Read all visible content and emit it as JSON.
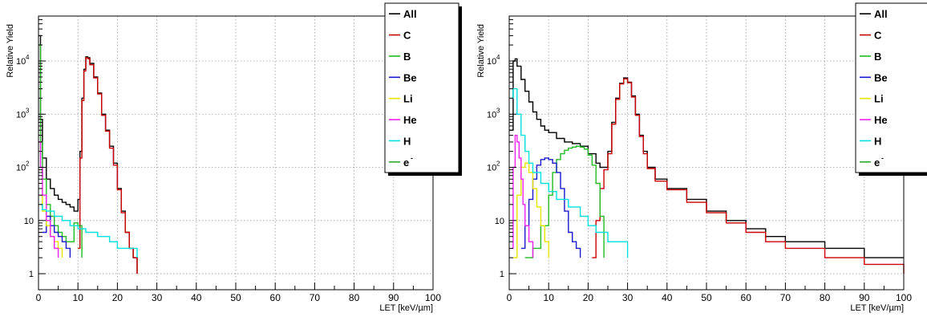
{
  "chart_data": [
    {
      "type": "line",
      "title": "",
      "xlabel": "LET [keV/µm]",
      "ylabel": "Relative Yield",
      "xlim": [
        0,
        100
      ],
      "ylim": [
        0.5,
        70000
      ],
      "yscale": "log",
      "grid": true,
      "legend_position": "top-right",
      "x_ticks": [
        "0",
        "10",
        "20",
        "30",
        "40",
        "50",
        "60",
        "70",
        "80",
        "90",
        "100"
      ],
      "y_ticks": [
        {
          "value": 1,
          "base": "1",
          "exp": ""
        },
        {
          "value": 10,
          "base": "10",
          "exp": ""
        },
        {
          "value": 100,
          "base": "10",
          "exp": "2"
        },
        {
          "value": 1000,
          "base": "10",
          "exp": "3"
        },
        {
          "value": 10000,
          "base": "10",
          "exp": "4"
        }
      ],
      "series": [
        {
          "name": "All",
          "color": "#000000",
          "x": [
            0,
            0.5,
            1,
            2,
            3,
            4,
            5,
            6,
            7,
            8,
            9,
            10,
            10.5,
            11,
            11.5,
            12,
            12.5,
            13,
            14,
            15,
            16,
            17,
            18,
            19,
            20,
            21,
            22,
            23,
            24,
            25
          ],
          "y": [
            30000,
            800,
            150,
            60,
            40,
            30,
            25,
            22,
            20,
            18,
            15,
            25,
            200,
            2000,
            7000,
            12000,
            11500,
            9000,
            5000,
            2500,
            1000,
            500,
            250,
            120,
            40,
            15,
            6,
            3,
            2,
            1
          ]
        },
        {
          "name": "C",
          "color": "#cc0000",
          "x": [
            10,
            10.5,
            11,
            11.5,
            12,
            12.5,
            13,
            14,
            15,
            16,
            17,
            18,
            19,
            20,
            21,
            22,
            23,
            24,
            25
          ],
          "y": [
            3,
            150,
            1800,
            6500,
            11500,
            11000,
            8500,
            4800,
            2400,
            950,
            480,
            230,
            110,
            38,
            14,
            6,
            3,
            2,
            1
          ]
        },
        {
          "name": "B",
          "color": "#22bb22",
          "x": [
            0,
            0.5,
            1,
            2,
            3,
            4,
            5,
            6,
            7,
            8,
            9,
            10,
            11
          ],
          "y": [
            20000,
            300,
            60,
            20,
            12,
            8,
            6,
            5,
            4,
            4,
            9,
            8,
            2
          ]
        },
        {
          "name": "Be",
          "color": "#1a1acc",
          "x": [
            1,
            2,
            3,
            4,
            5,
            6,
            7,
            8
          ],
          "y": [
            6,
            12,
            8,
            6,
            5,
            4,
            3,
            2
          ]
        },
        {
          "name": "Li",
          "color": "#e6e600",
          "x": [
            0.5,
            1,
            2,
            3,
            4,
            5,
            6
          ],
          "y": [
            30,
            15,
            8,
            5,
            4,
            3,
            2
          ]
        },
        {
          "name": "He",
          "color": "#ee22ee",
          "x": [
            0,
            0.5,
            1,
            2,
            3,
            4,
            5
          ],
          "y": [
            300,
            100,
            30,
            10,
            5,
            3,
            2
          ]
        },
        {
          "name": "H",
          "color": "#00e0e0",
          "x": [
            0.5,
            1,
            2,
            4,
            6,
            8,
            10,
            12,
            15,
            18,
            20,
            25
          ],
          "y": [
            20,
            16,
            15,
            12,
            10,
            8,
            7,
            6,
            5,
            4,
            3,
            2
          ]
        },
        {
          "name": "e-",
          "label_base": "e",
          "label_sup": "-",
          "color": "#33aa33",
          "x": [],
          "y": []
        }
      ]
    },
    {
      "type": "line",
      "title": "",
      "xlabel": "LET [keV/µm]",
      "ylabel": "Relative Yield",
      "xlim": [
        0,
        100
      ],
      "ylim": [
        0.5,
        70000
      ],
      "yscale": "log",
      "grid": true,
      "legend_position": "top-right",
      "x_ticks": [
        "0",
        "10",
        "20",
        "30",
        "40",
        "50",
        "60",
        "70",
        "80",
        "90",
        "100"
      ],
      "y_ticks": [
        {
          "value": 1,
          "base": "1",
          "exp": ""
        },
        {
          "value": 10,
          "base": "10",
          "exp": ""
        },
        {
          "value": 100,
          "base": "10",
          "exp": "2"
        },
        {
          "value": 1000,
          "base": "10",
          "exp": "3"
        },
        {
          "value": 10000,
          "base": "10",
          "exp": "4"
        }
      ],
      "series": [
        {
          "name": "All",
          "color": "#000000",
          "x": [
            0,
            1,
            1.5,
            2,
            3,
            4,
            5,
            6,
            7,
            8,
            9,
            10,
            12,
            14,
            16,
            18,
            20,
            22,
            23,
            24,
            25,
            26,
            27,
            28,
            29,
            30,
            31,
            32,
            33,
            34,
            35,
            37,
            40,
            45,
            50,
            55,
            60,
            65,
            70,
            80,
            90,
            100
          ],
          "y": [
            500,
            10000,
            11000,
            8000,
            4500,
            2700,
            1700,
            1100,
            800,
            600,
            500,
            450,
            350,
            300,
            280,
            250,
            180,
            120,
            100,
            100,
            200,
            700,
            2000,
            3800,
            4800,
            4000,
            2200,
            1000,
            400,
            200,
            100,
            60,
            40,
            25,
            15,
            10,
            7,
            5,
            4,
            3,
            2,
            2
          ]
        },
        {
          "name": "C",
          "color": "#cc0000",
          "x": [
            21,
            22,
            23,
            24,
            25,
            26,
            27,
            28,
            29,
            30,
            31,
            32,
            33,
            34,
            35,
            37,
            40,
            45,
            50,
            55,
            60,
            65,
            70,
            80,
            90,
            100
          ],
          "y": [
            2,
            10,
            40,
            90,
            180,
            650,
            1900,
            3700,
            4600,
            3900,
            2100,
            950,
            380,
            180,
            95,
            55,
            38,
            22,
            14,
            9,
            6,
            4,
            3,
            2,
            1.5,
            1
          ]
        },
        {
          "name": "B",
          "color": "#22bb22",
          "x": [
            4,
            6,
            8,
            10,
            11,
            12,
            13,
            14,
            15,
            16,
            17,
            18,
            19,
            20,
            21,
            22,
            23,
            24
          ],
          "y": [
            2,
            3,
            8,
            30,
            80,
            140,
            180,
            210,
            230,
            240,
            250,
            240,
            220,
            170,
            110,
            50,
            12,
            2
          ]
        },
        {
          "name": "Be",
          "color": "#1a1acc",
          "x": [
            3,
            4,
            5,
            6,
            7,
            8,
            9,
            10,
            11,
            12,
            13,
            14,
            15,
            16,
            17,
            18
          ],
          "y": [
            3,
            8,
            25,
            60,
            110,
            140,
            150,
            140,
            120,
            80,
            40,
            15,
            6,
            4,
            3,
            2
          ]
        },
        {
          "name": "Li",
          "color": "#e6e600",
          "x": [
            1,
            2,
            3,
            4,
            5,
            6,
            7,
            8,
            9,
            10
          ],
          "y": [
            2,
            30,
            100,
            120,
            80,
            40,
            18,
            8,
            4,
            2
          ]
        },
        {
          "name": "He",
          "color": "#ee22ee",
          "x": [
            0.5,
            1,
            1.5,
            2,
            2.5,
            3,
            3.5,
            4,
            5,
            6
          ],
          "y": [
            3,
            100,
            400,
            300,
            150,
            60,
            20,
            8,
            4,
            2
          ]
        },
        {
          "name": "H",
          "color": "#00e0e0",
          "x": [
            0.5,
            1,
            2,
            3,
            4,
            5,
            6,
            8,
            10,
            12,
            15,
            18,
            20,
            22,
            25,
            30
          ],
          "y": [
            2000,
            3000,
            1000,
            400,
            200,
            120,
            80,
            50,
            35,
            25,
            18,
            12,
            8,
            6,
            4,
            2
          ]
        },
        {
          "name": "e-",
          "label_base": "e",
          "label_sup": "-",
          "color": "#33aa33",
          "x": [],
          "y": []
        }
      ]
    }
  ]
}
